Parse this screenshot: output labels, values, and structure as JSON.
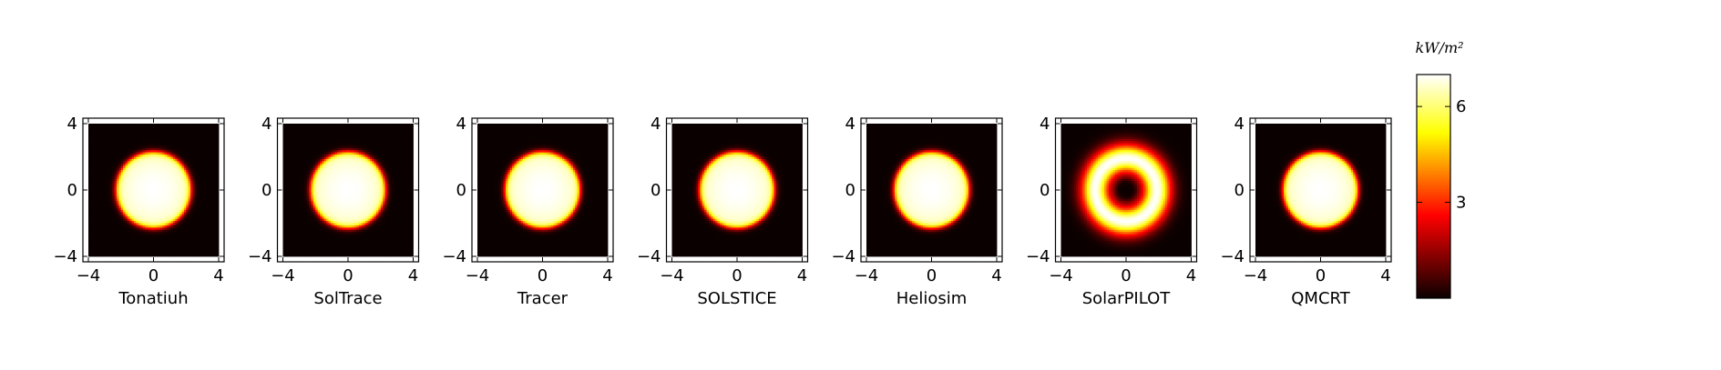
{
  "chart_data": {
    "type": "heatmap",
    "colormap": "hot",
    "colorbar": {
      "label": "kW/m²",
      "ticks": [
        3,
        6
      ],
      "tick_labels": [
        "3",
        "6"
      ],
      "range": [
        0,
        7
      ]
    },
    "xlim": [
      -4,
      4
    ],
    "ylim": [
      -4,
      4
    ],
    "x_ticks": [
      "−4",
      "0",
      "4"
    ],
    "y_ticks": [
      "4",
      "0",
      "−4"
    ],
    "panels": [
      {
        "name": "Tonatiuh",
        "pattern": "disc",
        "radius": 2.3,
        "peak": 7.0
      },
      {
        "name": "SolTrace",
        "pattern": "disc",
        "radius": 2.3,
        "peak": 7.0
      },
      {
        "name": "Tracer",
        "pattern": "disc",
        "radius": 2.3,
        "peak": 7.0
      },
      {
        "name": "SOLSTICE",
        "pattern": "disc",
        "radius": 2.3,
        "peak": 7.0
      },
      {
        "name": "Heliosim",
        "pattern": "disc",
        "radius": 2.3,
        "peak": 7.0
      },
      {
        "name": "SolarPILOT",
        "pattern": "ring",
        "radius": 1.9,
        "peak": 7.0
      },
      {
        "name": "QMCRT",
        "pattern": "disc",
        "radius": 2.3,
        "peak": 7.0
      }
    ]
  }
}
